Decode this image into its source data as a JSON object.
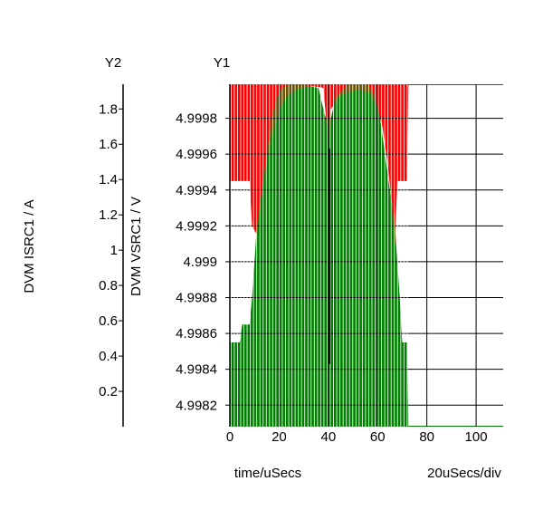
{
  "chart_data": {
    "type": "area",
    "y2_title": "Y2",
    "y1_title": "Y1",
    "y2_label": "DVM ISRC1 / A",
    "y1_label": "DVM VSRC1 / V",
    "xlabel": "time/uSecs",
    "x_division_label": "20uSecs/div",
    "xlim": [
      0,
      111
    ],
    "y1lim": [
      4.99808,
      4.99999
    ],
    "y2lim": [
      0,
      1.94
    ],
    "x_ticks": [
      "0",
      "20",
      "40",
      "60",
      "80",
      "100"
    ],
    "x_tick_values": [
      0,
      20,
      40,
      60,
      80,
      100
    ],
    "y1_ticks": [
      "4.9982",
      "4.9984",
      "4.9986",
      "4.9988",
      "4.999",
      "4.9992",
      "4.9994",
      "4.9996",
      "4.9998"
    ],
    "y1_tick_values": [
      4.9982,
      4.9984,
      4.9986,
      4.9988,
      4.999,
      4.9992,
      4.9994,
      4.9996,
      4.9998
    ],
    "y2_ticks": [
      "0.2",
      "0.4",
      "0.6",
      "0.8",
      "1",
      "1.2",
      "1.4",
      "1.6",
      "1.8"
    ],
    "y2_tick_values": [
      0.2,
      0.4,
      0.6,
      0.8,
      1.0,
      1.2,
      1.4,
      1.6,
      1.8
    ],
    "grid": true,
    "series": [
      {
        "axis": "y1",
        "color": "#ff0000",
        "min_envelope": [
          {
            "x": 0,
            "y": 4.99945
          },
          {
            "x": 8,
            "y": 4.99945
          },
          {
            "x": 9,
            "y": 4.9992
          },
          {
            "x": 11,
            "y": 4.99915
          },
          {
            "x": 13,
            "y": 4.9994
          },
          {
            "x": 15,
            "y": 4.99955
          },
          {
            "x": 17,
            "y": 4.9997
          },
          {
            "x": 19,
            "y": 4.9998
          },
          {
            "x": 21,
            "y": 4.99987
          },
          {
            "x": 23,
            "y": 4.99992
          },
          {
            "x": 27,
            "y": 4.99996
          },
          {
            "x": 33,
            "y": 4.99998
          },
          {
            "x": 38,
            "y": 4.99997
          },
          {
            "x": 40,
            "y": 4.99965
          },
          {
            "x": 41,
            "y": 4.99985
          },
          {
            "x": 45,
            "y": 4.99993
          },
          {
            "x": 52,
            "y": 4.99996
          },
          {
            "x": 57,
            "y": 4.99994
          },
          {
            "x": 60,
            "y": 4.99985
          },
          {
            "x": 62,
            "y": 4.99975
          },
          {
            "x": 64,
            "y": 4.99955
          },
          {
            "x": 66,
            "y": 4.9993
          },
          {
            "x": 67,
            "y": 4.9991
          },
          {
            "x": 68,
            "y": 4.99945
          },
          {
            "x": 72,
            "y": 4.99945
          },
          {
            "x": 72.5,
            "y": 4.99999
          },
          {
            "x": 111,
            "y": 4.99999
          }
        ],
        "max_value": 4.99999
      },
      {
        "axis": "y1",
        "color": "#008000",
        "min_value": 4.99808,
        "max_envelope": [
          {
            "x": 0,
            "y": 4.99855
          },
          {
            "x": 4,
            "y": 4.99855
          },
          {
            "x": 5,
            "y": 4.99865
          },
          {
            "x": 8,
            "y": 4.99865
          },
          {
            "x": 9,
            "y": 4.9988
          },
          {
            "x": 10,
            "y": 4.999
          },
          {
            "x": 11,
            "y": 4.9992
          },
          {
            "x": 13,
            "y": 4.9994
          },
          {
            "x": 15,
            "y": 4.9996
          },
          {
            "x": 17,
            "y": 4.9998
          },
          {
            "x": 19,
            "y": 4.99992
          },
          {
            "x": 22,
            "y": 4.99998
          },
          {
            "x": 28,
            "y": 4.99999
          },
          {
            "x": 36,
            "y": 4.99997
          },
          {
            "x": 38,
            "y": 4.99985
          },
          {
            "x": 39,
            "y": 4.9998
          },
          {
            "x": 41,
            "y": 4.9998
          },
          {
            "x": 43,
            "y": 4.99992
          },
          {
            "x": 48,
            "y": 4.99999
          },
          {
            "x": 56,
            "y": 4.99999
          },
          {
            "x": 59,
            "y": 4.99992
          },
          {
            "x": 61,
            "y": 4.9998
          },
          {
            "x": 63,
            "y": 4.9996
          },
          {
            "x": 65,
            "y": 4.9994
          },
          {
            "x": 67,
            "y": 4.9992
          },
          {
            "x": 68,
            "y": 4.999
          },
          {
            "x": 69,
            "y": 4.9988
          },
          {
            "x": 70,
            "y": 4.99855
          },
          {
            "x": 72,
            "y": 4.99855
          },
          {
            "x": 72.5,
            "y": 4.99808
          },
          {
            "x": 111,
            "y": 4.99808
          }
        ]
      }
    ]
  }
}
